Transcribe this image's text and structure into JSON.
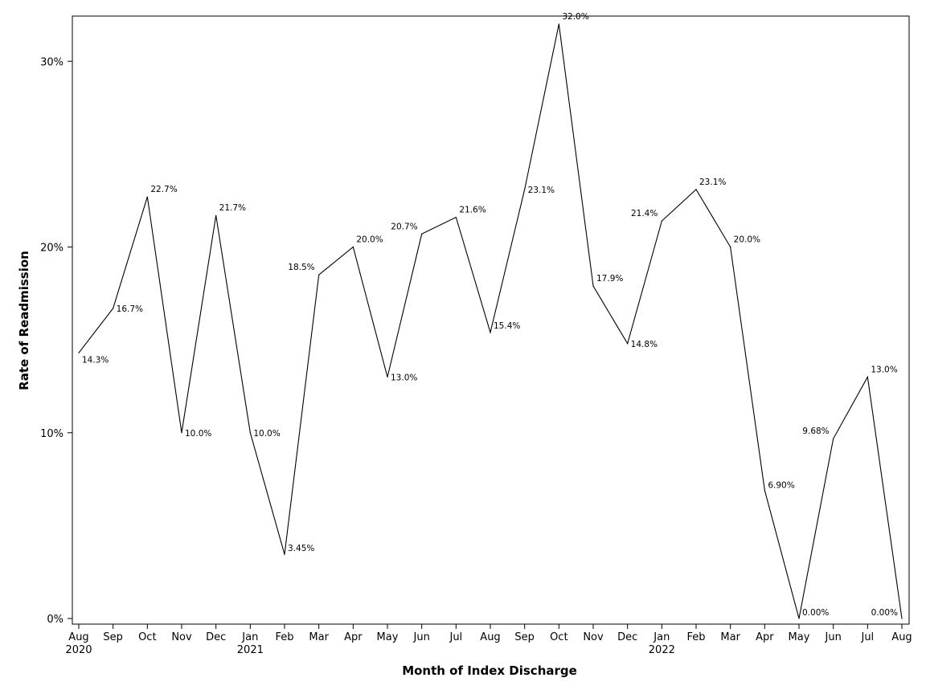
{
  "chart_data": {
    "type": "line",
    "title": "",
    "xlabel": "Month of Index Discharge",
    "ylabel": "Rate of Readmission",
    "ylim": [
      0,
      32
    ],
    "yticks": [
      {
        "value": 0,
        "label": "0%"
      },
      {
        "value": 10,
        "label": "10%"
      },
      {
        "value": 20,
        "label": "20%"
      },
      {
        "value": 30,
        "label": "30%"
      }
    ],
    "grid": false,
    "legend": "none",
    "colors": {
      "line": "#000000",
      "axis": "#000000"
    },
    "points": [
      {
        "month": "Aug",
        "year": "2020",
        "value": 14.3,
        "label": "14.3%",
        "label_side": "below-right"
      },
      {
        "month": "Sep",
        "year": "",
        "value": 16.7,
        "label": "16.7%",
        "label_side": "below-right"
      },
      {
        "month": "Oct",
        "year": "",
        "value": 22.7,
        "label": "22.7%",
        "label_side": "right"
      },
      {
        "month": "Nov",
        "year": "",
        "value": 10.0,
        "label": "10.0%",
        "label_side": "right"
      },
      {
        "month": "Dec",
        "year": "",
        "value": 21.7,
        "label": "21.7%",
        "label_side": "right"
      },
      {
        "month": "Jan",
        "year": "2021",
        "value": 10.0,
        "label": "10.0%",
        "label_side": "right"
      },
      {
        "month": "Feb",
        "year": "",
        "value": 3.45,
        "label": "3.45%",
        "label_side": "right"
      },
      {
        "month": "Mar",
        "year": "",
        "value": 18.5,
        "label": "18.5%",
        "label_side": "left"
      },
      {
        "month": "Apr",
        "year": "",
        "value": 20.0,
        "label": "20.0%",
        "label_side": "right"
      },
      {
        "month": "May",
        "year": "",
        "value": 13.0,
        "label": "13.0%",
        "label_side": "right"
      },
      {
        "month": "Jun",
        "year": "",
        "value": 20.7,
        "label": "20.7%",
        "label_side": "left"
      },
      {
        "month": "Jul",
        "year": "",
        "value": 21.6,
        "label": "21.6%",
        "label_side": "right"
      },
      {
        "month": "Aug",
        "year": "",
        "value": 15.4,
        "label": "15.4%",
        "label_side": "right"
      },
      {
        "month": "Sep",
        "year": "",
        "value": 23.1,
        "label": "23.1%",
        "label_side": "right"
      },
      {
        "month": "Oct",
        "year": "",
        "value": 32.0,
        "label": "32.0%",
        "label_side": "right"
      },
      {
        "month": "Nov",
        "year": "",
        "value": 17.9,
        "label": "17.9%",
        "label_side": "right"
      },
      {
        "month": "Dec",
        "year": "",
        "value": 14.8,
        "label": "14.8%",
        "label_side": "right"
      },
      {
        "month": "Jan",
        "year": "2022",
        "value": 21.4,
        "label": "21.4%",
        "label_side": "left"
      },
      {
        "month": "Feb",
        "year": "",
        "value": 23.1,
        "label": "23.1%",
        "label_side": "right"
      },
      {
        "month": "Mar",
        "year": "",
        "value": 20.0,
        "label": "20.0%",
        "label_side": "right"
      },
      {
        "month": "Apr",
        "year": "",
        "value": 6.9,
        "label": "6.90%",
        "label_side": "right"
      },
      {
        "month": "May",
        "year": "",
        "value": 0.0,
        "label": "0.00%",
        "label_side": "right"
      },
      {
        "month": "Jun",
        "year": "",
        "value": 9.68,
        "label": "9.68%",
        "label_side": "left"
      },
      {
        "month": "Jul",
        "year": "",
        "value": 13.0,
        "label": "13.0%",
        "label_side": "right"
      },
      {
        "month": "Aug",
        "year": "",
        "value": 0.0,
        "label": "0.00%",
        "label_side": "left"
      }
    ]
  }
}
